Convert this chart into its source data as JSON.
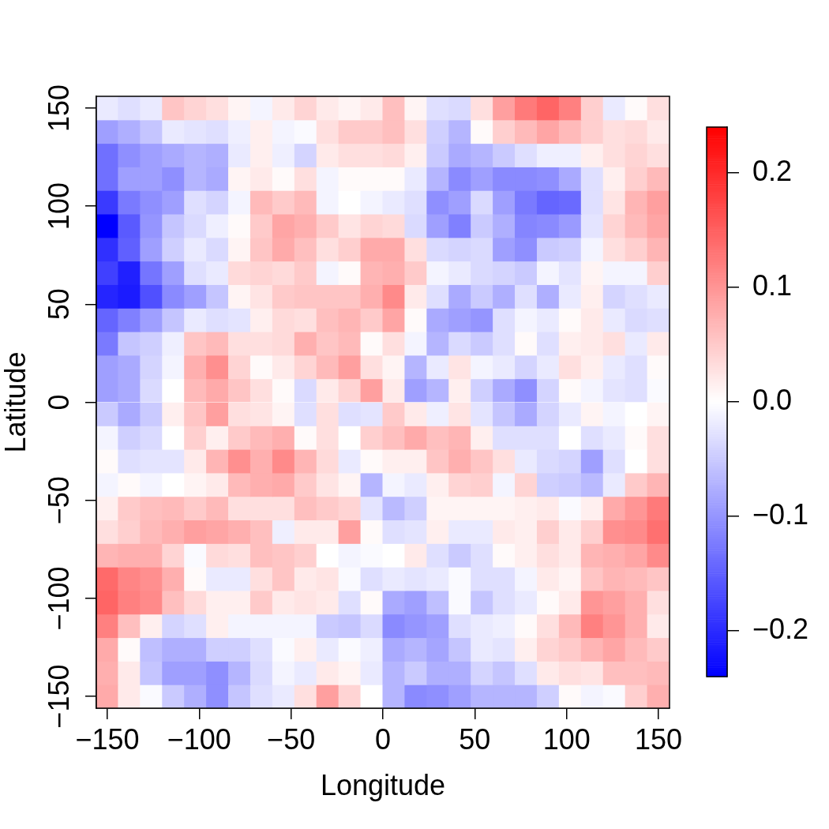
{
  "chart_data": {
    "type": "heatmap",
    "xlabel": "Longitude",
    "ylabel": "Latitude",
    "x": [
      -150,
      -138,
      -126,
      -114,
      -102,
      -90,
      -78,
      -66,
      -54,
      -42,
      -30,
      -18,
      -6,
      6,
      18,
      30,
      42,
      54,
      66,
      78,
      90,
      102,
      114,
      126,
      138,
      150
    ],
    "xlim": [
      -156,
      156
    ],
    "ylim": [
      -156,
      156
    ],
    "xticks": [
      {
        "value": -150,
        "label": "−150"
      },
      {
        "value": -100,
        "label": "−100"
      },
      {
        "value": -50,
        "label": "−50"
      },
      0,
      50,
      100,
      150
    ],
    "yticks": [
      {
        "value": -150,
        "label": "−150"
      },
      {
        "value": -100,
        "label": "−100"
      },
      {
        "value": -50,
        "label": "−50"
      },
      0,
      50,
      100,
      150
    ],
    "clim": [
      -0.24,
      0.24
    ],
    "cticks": [
      {
        "value": -0.2,
        "label": "−0.2"
      },
      {
        "value": -0.1,
        "label": "−0.1"
      },
      {
        "value": 0,
        "label": "0.0"
      },
      0.1,
      0.2
    ],
    "cells": [
      [
        -0.02,
        -0.03,
        -0.02,
        0.055,
        0.04,
        0.03,
        0.01,
        -0.01,
        0.02,
        0.04,
        0.02,
        0.01,
        0.02,
        0.06,
        0.01,
        -0.03,
        -0.035,
        0.03,
        0.09,
        0.125,
        0.145,
        0.12,
        0.045,
        -0.02,
        0.005,
        0.03
      ],
      [
        -0.09,
        -0.075,
        -0.055,
        -0.02,
        -0.025,
        -0.03,
        -0.015,
        0.015,
        -0.01,
        -0.005,
        0.03,
        0.05,
        0.05,
        0.06,
        0.03,
        -0.045,
        -0.07,
        0.005,
        0.045,
        0.065,
        0.085,
        0.065,
        0.045,
        0.03,
        0.035,
        0.02
      ],
      [
        -0.135,
        -0.105,
        -0.09,
        -0.08,
        -0.07,
        -0.075,
        -0.02,
        0.015,
        -0.015,
        -0.04,
        0.02,
        0.03,
        0.03,
        0.035,
        0.015,
        -0.05,
        -0.08,
        -0.07,
        -0.05,
        -0.03,
        -0.015,
        -0.015,
        0.015,
        0.03,
        0.04,
        0.03
      ],
      [
        -0.135,
        -0.09,
        -0.09,
        -0.105,
        -0.07,
        -0.08,
        0.01,
        0.02,
        0.005,
        0.03,
        -0.01,
        0.005,
        0.005,
        0.005,
        -0.02,
        -0.07,
        -0.11,
        -0.09,
        -0.11,
        -0.11,
        -0.105,
        -0.08,
        -0.03,
        0.015,
        0.045,
        0.065
      ],
      [
        -0.185,
        -0.125,
        -0.105,
        -0.09,
        -0.03,
        -0.04,
        -0.01,
        0.065,
        0.05,
        0.065,
        -0.01,
        0,
        -0.01,
        -0.02,
        -0.03,
        -0.105,
        -0.09,
        -0.035,
        -0.09,
        -0.125,
        -0.145,
        -0.14,
        -0.03,
        0.025,
        0.07,
        0.09
      ],
      [
        -0.24,
        -0.155,
        -0.1,
        -0.055,
        -0.035,
        -0.015,
        0.005,
        0.05,
        0.085,
        0.075,
        0.05,
        0.025,
        0.04,
        0.035,
        -0.035,
        -0.09,
        -0.12,
        -0.05,
        -0.075,
        -0.115,
        -0.11,
        -0.095,
        -0.025,
        0.04,
        0.065,
        0.085
      ],
      [
        -0.195,
        -0.15,
        -0.09,
        -0.045,
        -0.02,
        -0.035,
        0.01,
        0.055,
        0.08,
        0.06,
        0.03,
        0.045,
        0.08,
        0.08,
        0.03,
        -0.035,
        -0.04,
        -0.035,
        -0.09,
        -0.105,
        -0.05,
        -0.045,
        -0.01,
        0.03,
        0.045,
        0.07
      ],
      [
        -0.18,
        -0.21,
        -0.13,
        -0.09,
        -0.03,
        -0.02,
        0.035,
        0.04,
        0.035,
        0.05,
        -0.01,
        0.005,
        0.07,
        0.075,
        0.05,
        -0.01,
        -0.02,
        -0.035,
        -0.04,
        -0.05,
        -0.01,
        -0.025,
        0.01,
        -0.01,
        -0.01,
        0.045
      ],
      [
        -0.205,
        -0.215,
        -0.165,
        -0.11,
        -0.09,
        -0.055,
        0.01,
        0.025,
        0.05,
        0.055,
        0.055,
        0.055,
        0.075,
        0.11,
        0.02,
        -0.03,
        -0.08,
        -0.05,
        -0.075,
        -0.03,
        -0.075,
        -0.02,
        0.015,
        -0.04,
        -0.03,
        -0.02
      ],
      [
        -0.145,
        -0.12,
        -0.09,
        -0.055,
        -0.02,
        -0.03,
        -0.025,
        0.015,
        0.035,
        0.03,
        0.06,
        0.07,
        0.05,
        0.085,
        0.005,
        -0.08,
        -0.09,
        -0.1,
        -0.03,
        -0.01,
        -0.02,
        0.005,
        0.02,
        -0.02,
        -0.035,
        -0.03
      ],
      [
        -0.125,
        -0.055,
        -0.045,
        -0.015,
        0.055,
        0.065,
        0.03,
        0.03,
        0.035,
        0.075,
        0.055,
        0.065,
        0.005,
        0.03,
        -0.01,
        -0.07,
        -0.035,
        -0.05,
        -0.03,
        0.005,
        -0.03,
        0.015,
        0.02,
        0.03,
        -0.02,
        0.02
      ],
      [
        -0.09,
        -0.08,
        -0.04,
        -0.01,
        0.075,
        0.105,
        0.04,
        0.005,
        0.02,
        0.04,
        0.065,
        0.09,
        0.03,
        0.01,
        -0.07,
        -0.02,
        0.025,
        -0.01,
        -0.02,
        -0.04,
        -0.02,
        0.03,
        0.015,
        -0.02,
        -0.03,
        0.005
      ],
      [
        -0.09,
        -0.08,
        -0.035,
        0,
        0.065,
        0.08,
        0.055,
        0.03,
        0.005,
        -0.035,
        0.02,
        0.04,
        0.09,
        0.02,
        -0.09,
        -0.07,
        0.015,
        -0.045,
        -0.08,
        -0.105,
        -0.04,
        0.005,
        -0.01,
        -0.025,
        -0.03,
        -0.005
      ],
      [
        -0.05,
        -0.08,
        -0.05,
        0.015,
        0.055,
        0.09,
        0.03,
        0.025,
        0.01,
        -0.03,
        0.03,
        -0.03,
        -0.025,
        0.05,
        0.02,
        -0.015,
        0.025,
        -0.025,
        -0.055,
        -0.08,
        -0.04,
        -0.02,
        0.01,
        -0.01,
        0,
        0.01
      ],
      [
        -0.01,
        -0.045,
        -0.035,
        0,
        0.045,
        0.015,
        0.05,
        0.065,
        0.075,
        0.005,
        0.03,
        0,
        0.045,
        0.06,
        0.08,
        0.06,
        0.07,
        0.015,
        -0.03,
        -0.03,
        -0.03,
        0,
        -0.03,
        -0.02,
        0.005,
        0.03
      ],
      [
        0.005,
        -0.03,
        -0.025,
        -0.025,
        0.02,
        0.07,
        0.105,
        0.075,
        0.11,
        0.07,
        0.035,
        -0.02,
        0.005,
        0.015,
        0.015,
        0.055,
        0.075,
        0.055,
        0.03,
        -0.02,
        -0.035,
        -0.04,
        -0.09,
        -0.03,
        0,
        0.03
      ],
      [
        -0.01,
        0.005,
        -0.01,
        0,
        0.01,
        0.02,
        0.065,
        0.075,
        0.08,
        0.05,
        0.025,
        0.01,
        -0.07,
        -0.01,
        -0.02,
        0.015,
        0.04,
        0.045,
        -0.01,
        0.04,
        -0.045,
        -0.05,
        -0.065,
        -0.02,
        0.05,
        0.07
      ],
      [
        0.015,
        0.05,
        0.06,
        0.065,
        0.05,
        0.065,
        0.03,
        0.03,
        0.03,
        0.06,
        0.05,
        0.04,
        -0.025,
        -0.065,
        -0.045,
        0.01,
        0.01,
        0.01,
        0.01,
        0.015,
        0.02,
        -0.005,
        0.015,
        0.08,
        0.1,
        0.125
      ],
      [
        0.03,
        0.045,
        0.065,
        0.075,
        0.09,
        0.085,
        0.075,
        0.06,
        -0.015,
        0.02,
        0.02,
        0.09,
        0.005,
        -0.03,
        -0.025,
        0.015,
        -0.02,
        -0.02,
        0.02,
        0.015,
        0.045,
        0.02,
        0.045,
        0.105,
        0.11,
        0.135
      ],
      [
        0.07,
        0.075,
        0.075,
        0.04,
        -0.005,
        0.035,
        0.03,
        0.06,
        0.055,
        0.045,
        0,
        -0.01,
        -0.005,
        0,
        0.02,
        -0.03,
        -0.05,
        -0.03,
        0.005,
        0.015,
        0.03,
        0.02,
        0.07,
        0.075,
        0.085,
        0.11
      ],
      [
        0.14,
        0.115,
        0.105,
        0.075,
        0.005,
        -0.02,
        -0.02,
        0.03,
        0.055,
        0.02,
        0.025,
        -0.005,
        -0.03,
        -0.02,
        -0.025,
        -0.02,
        -0.005,
        -0.03,
        -0.03,
        -0.01,
        0.02,
        0.01,
        0.055,
        0.07,
        0.065,
        0.055
      ],
      [
        0.145,
        0.12,
        0.11,
        0.06,
        0.035,
        0.015,
        0.015,
        0.05,
        0.02,
        0.025,
        0.02,
        -0.03,
        0.005,
        -0.08,
        -0.09,
        -0.06,
        -0.005,
        -0.055,
        -0.03,
        -0.02,
        0.005,
        0.02,
        0.1,
        0.09,
        0.075,
        0.03
      ],
      [
        0.12,
        0.06,
        0.015,
        -0.04,
        -0.03,
        0.015,
        -0.01,
        -0.01,
        -0.01,
        -0.01,
        -0.05,
        -0.055,
        -0.035,
        -0.11,
        -0.1,
        -0.09,
        -0.03,
        -0.02,
        -0.015,
        0.005,
        0.03,
        0.065,
        0.12,
        0.1,
        0.075,
        0.02
      ],
      [
        0.08,
        0.005,
        -0.06,
        -0.075,
        -0.075,
        -0.045,
        -0.045,
        -0.03,
        -0.005,
        0.015,
        -0.02,
        -0.005,
        -0.015,
        -0.08,
        -0.07,
        -0.085,
        -0.055,
        -0.02,
        -0.025,
        0.015,
        0.04,
        0.05,
        0.07,
        0.085,
        0.065,
        0.05
      ],
      [
        0.075,
        0.02,
        -0.055,
        -0.09,
        -0.09,
        -0.105,
        -0.07,
        -0.035,
        -0.01,
        -0.02,
        0.02,
        0.01,
        -0.02,
        -0.07,
        -0.05,
        -0.075,
        -0.075,
        -0.04,
        -0.055,
        -0.03,
        0.02,
        0.03,
        0.025,
        0.06,
        0.06,
        0.065
      ],
      [
        0.08,
        0.02,
        -0.005,
        -0.05,
        -0.075,
        -0.105,
        -0.055,
        -0.03,
        -0.02,
        0.03,
        0.09,
        0.04,
        0,
        -0.07,
        -0.11,
        -0.105,
        -0.09,
        -0.07,
        -0.07,
        -0.07,
        -0.045,
        0.005,
        -0.01,
        -0.005,
        0.045,
        0.075
      ]
    ]
  }
}
